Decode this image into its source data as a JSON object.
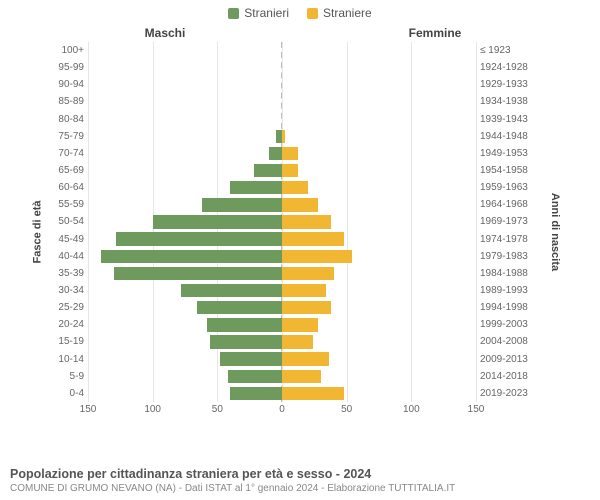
{
  "legend": {
    "male": {
      "label": "Stranieri",
      "color": "#6e9a5e"
    },
    "female": {
      "label": "Straniere",
      "color": "#f2b732"
    }
  },
  "headers": {
    "male": "Maschi",
    "female": "Femmine"
  },
  "axis_labels": {
    "left": "Fasce di età",
    "right": "Anni di nascita"
  },
  "chart": {
    "type": "population-pyramid",
    "xmax": 150,
    "xticks_left": [
      150,
      100,
      50,
      0
    ],
    "xticks_right": [
      0,
      50,
      100,
      150
    ],
    "background_color": "#ffffff",
    "grid_color": "#e6e6e6",
    "center_line_color": "#bdbdbd",
    "bar_colors": {
      "male": "#6e9a5e",
      "female": "#f2b732"
    },
    "label_fontsize": 10,
    "tick_fontsize": 10,
    "rows": [
      {
        "age": "100+",
        "birth": "≤ 1923",
        "male": 0,
        "female": 0
      },
      {
        "age": "95-99",
        "birth": "1924-1928",
        "male": 0,
        "female": 0
      },
      {
        "age": "90-94",
        "birth": "1929-1933",
        "male": 0,
        "female": 0
      },
      {
        "age": "85-89",
        "birth": "1934-1938",
        "male": 0,
        "female": 0
      },
      {
        "age": "80-84",
        "birth": "1939-1943",
        "male": 0,
        "female": 0
      },
      {
        "age": "75-79",
        "birth": "1944-1948",
        "male": 5,
        "female": 2
      },
      {
        "age": "70-74",
        "birth": "1949-1953",
        "male": 10,
        "female": 12
      },
      {
        "age": "65-69",
        "birth": "1954-1958",
        "male": 22,
        "female": 12
      },
      {
        "age": "60-64",
        "birth": "1959-1963",
        "male": 40,
        "female": 20
      },
      {
        "age": "55-59",
        "birth": "1964-1968",
        "male": 62,
        "female": 28
      },
      {
        "age": "50-54",
        "birth": "1969-1973",
        "male": 100,
        "female": 38
      },
      {
        "age": "45-49",
        "birth": "1974-1978",
        "male": 128,
        "female": 48
      },
      {
        "age": "40-44",
        "birth": "1979-1983",
        "male": 140,
        "female": 54
      },
      {
        "age": "35-39",
        "birth": "1984-1988",
        "male": 130,
        "female": 40
      },
      {
        "age": "30-34",
        "birth": "1989-1993",
        "male": 78,
        "female": 34
      },
      {
        "age": "25-29",
        "birth": "1994-1998",
        "male": 66,
        "female": 38
      },
      {
        "age": "20-24",
        "birth": "1999-2003",
        "male": 58,
        "female": 28
      },
      {
        "age": "15-19",
        "birth": "2004-2008",
        "male": 56,
        "female": 24
      },
      {
        "age": "10-14",
        "birth": "2009-2013",
        "male": 48,
        "female": 36
      },
      {
        "age": "5-9",
        "birth": "2014-2018",
        "male": 42,
        "female": 30
      },
      {
        "age": "0-4",
        "birth": "2019-2023",
        "male": 40,
        "female": 48
      }
    ]
  },
  "footer": {
    "title": "Popolazione per cittadinanza straniera per età e sesso - 2024",
    "subtitle": "COMUNE DI GRUMO NEVANO (NA) - Dati ISTAT al 1° gennaio 2024 - Elaborazione TUTTITALIA.IT"
  }
}
